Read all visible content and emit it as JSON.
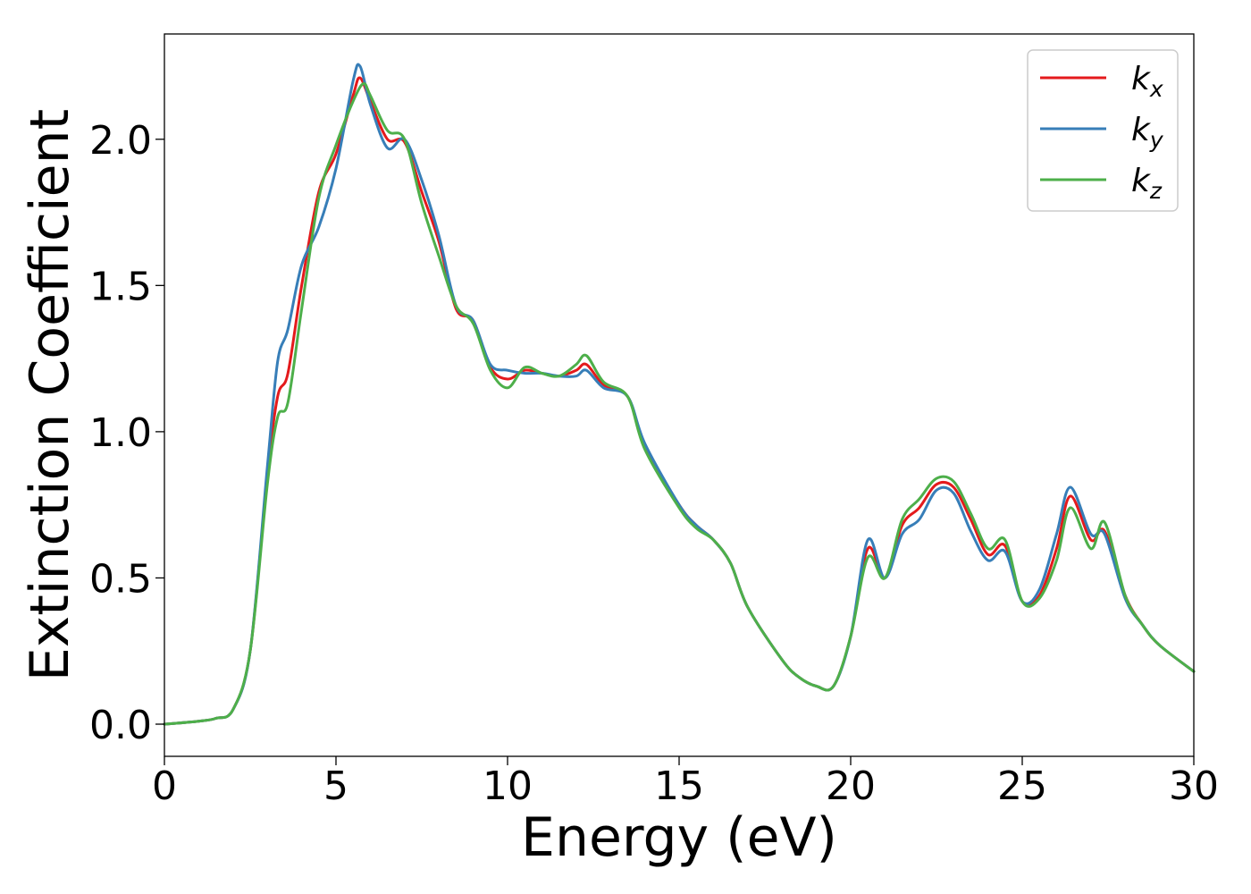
{
  "chart_data": {
    "type": "line",
    "title": "",
    "xlabel": "Energy (eV)",
    "ylabel": "Extinction Coefficient",
    "xlim": [
      0,
      30
    ],
    "ylim": [
      -0.11,
      2.36
    ],
    "xticks": [
      0,
      5,
      10,
      15,
      20,
      25,
      30
    ],
    "xtick_labels": [
      "0",
      "5",
      "10",
      "15",
      "20",
      "25",
      "30"
    ],
    "yticks": [
      0.0,
      0.5,
      1.0,
      1.5,
      2.0
    ],
    "ytick_labels": [
      "0.0",
      "0.5",
      "1.0",
      "1.5",
      "2.0"
    ],
    "grid": false,
    "legend_position": "top-right",
    "series": [
      {
        "name": "k_x",
        "legend_main": "k",
        "legend_sub": "x",
        "color": "#e41a1c",
        "points": [
          [
            0,
            0.0
          ],
          [
            1,
            0.01
          ],
          [
            1.5,
            0.02
          ],
          [
            2,
            0.05
          ],
          [
            2.5,
            0.25
          ],
          [
            3,
            0.85
          ],
          [
            3.3,
            1.12
          ],
          [
            3.6,
            1.2
          ],
          [
            4,
            1.5
          ],
          [
            4.5,
            1.82
          ],
          [
            5,
            1.95
          ],
          [
            5.5,
            2.15
          ],
          [
            5.7,
            2.21
          ],
          [
            6,
            2.13
          ],
          [
            6.5,
            2.0
          ],
          [
            7,
            1.99
          ],
          [
            7.5,
            1.82
          ],
          [
            8,
            1.65
          ],
          [
            8.5,
            1.42
          ],
          [
            9,
            1.38
          ],
          [
            9.5,
            1.22
          ],
          [
            10,
            1.18
          ],
          [
            10.5,
            1.21
          ],
          [
            11,
            1.2
          ],
          [
            11.5,
            1.19
          ],
          [
            12,
            1.21
          ],
          [
            12.3,
            1.23
          ],
          [
            12.8,
            1.16
          ],
          [
            13.5,
            1.12
          ],
          [
            14,
            0.95
          ],
          [
            15,
            0.75
          ],
          [
            15.5,
            0.68
          ],
          [
            16,
            0.63
          ],
          [
            16.5,
            0.55
          ],
          [
            17,
            0.4
          ],
          [
            18,
            0.22
          ],
          [
            18.5,
            0.16
          ],
          [
            19,
            0.13
          ],
          [
            19.5,
            0.13
          ],
          [
            20,
            0.3
          ],
          [
            20.5,
            0.6
          ],
          [
            21,
            0.5
          ],
          [
            21.5,
            0.68
          ],
          [
            22,
            0.74
          ],
          [
            22.5,
            0.82
          ],
          [
            23,
            0.81
          ],
          [
            23.5,
            0.7
          ],
          [
            24,
            0.58
          ],
          [
            24.5,
            0.61
          ],
          [
            25,
            0.42
          ],
          [
            25.5,
            0.44
          ],
          [
            26,
            0.6
          ],
          [
            26.4,
            0.78
          ],
          [
            27,
            0.63
          ],
          [
            27.4,
            0.66
          ],
          [
            28,
            0.44
          ],
          [
            28.5,
            0.34
          ],
          [
            29,
            0.27
          ],
          [
            30,
            0.18
          ]
        ]
      },
      {
        "name": "k_y",
        "legend_main": "k",
        "legend_sub": "y",
        "color": "#377eb8",
        "points": [
          [
            0,
            0.0
          ],
          [
            1,
            0.01
          ],
          [
            1.5,
            0.02
          ],
          [
            2,
            0.05
          ],
          [
            2.5,
            0.25
          ],
          [
            3,
            0.88
          ],
          [
            3.3,
            1.24
          ],
          [
            3.6,
            1.35
          ],
          [
            4,
            1.57
          ],
          [
            4.5,
            1.7
          ],
          [
            5,
            1.9
          ],
          [
            5.5,
            2.2
          ],
          [
            5.7,
            2.25
          ],
          [
            6,
            2.12
          ],
          [
            6.5,
            1.97
          ],
          [
            7,
            2.0
          ],
          [
            7.5,
            1.86
          ],
          [
            8,
            1.67
          ],
          [
            8.5,
            1.43
          ],
          [
            9,
            1.38
          ],
          [
            9.5,
            1.23
          ],
          [
            10,
            1.21
          ],
          [
            10.5,
            1.2
          ],
          [
            11,
            1.2
          ],
          [
            11.5,
            1.19
          ],
          [
            12,
            1.19
          ],
          [
            12.3,
            1.21
          ],
          [
            12.8,
            1.15
          ],
          [
            13.5,
            1.12
          ],
          [
            14,
            0.96
          ],
          [
            15,
            0.75
          ],
          [
            15.5,
            0.68
          ],
          [
            16,
            0.63
          ],
          [
            16.5,
            0.55
          ],
          [
            17,
            0.4
          ],
          [
            18,
            0.22
          ],
          [
            18.5,
            0.16
          ],
          [
            19,
            0.13
          ],
          [
            19.5,
            0.13
          ],
          [
            20,
            0.3
          ],
          [
            20.5,
            0.63
          ],
          [
            21,
            0.5
          ],
          [
            21.5,
            0.65
          ],
          [
            22,
            0.7
          ],
          [
            22.5,
            0.8
          ],
          [
            23,
            0.79
          ],
          [
            23.5,
            0.66
          ],
          [
            24,
            0.56
          ],
          [
            24.5,
            0.59
          ],
          [
            25,
            0.42
          ],
          [
            25.5,
            0.46
          ],
          [
            26,
            0.65
          ],
          [
            26.4,
            0.81
          ],
          [
            27,
            0.65
          ],
          [
            27.4,
            0.65
          ],
          [
            28,
            0.43
          ],
          [
            28.5,
            0.34
          ],
          [
            29,
            0.27
          ],
          [
            30,
            0.18
          ]
        ]
      },
      {
        "name": "k_z",
        "legend_main": "k",
        "legend_sub": "z",
        "color": "#4daf4a",
        "points": [
          [
            0,
            0.0
          ],
          [
            1,
            0.01
          ],
          [
            1.5,
            0.02
          ],
          [
            2,
            0.05
          ],
          [
            2.5,
            0.25
          ],
          [
            3,
            0.82
          ],
          [
            3.3,
            1.05
          ],
          [
            3.6,
            1.1
          ],
          [
            4,
            1.42
          ],
          [
            4.5,
            1.8
          ],
          [
            5,
            1.98
          ],
          [
            5.5,
            2.13
          ],
          [
            5.8,
            2.19
          ],
          [
            6,
            2.15
          ],
          [
            6.5,
            2.03
          ],
          [
            7,
            2.0
          ],
          [
            7.5,
            1.78
          ],
          [
            8,
            1.6
          ],
          [
            8.5,
            1.43
          ],
          [
            9,
            1.37
          ],
          [
            9.5,
            1.21
          ],
          [
            10,
            1.15
          ],
          [
            10.5,
            1.22
          ],
          [
            11,
            1.2
          ],
          [
            11.5,
            1.19
          ],
          [
            12,
            1.23
          ],
          [
            12.3,
            1.26
          ],
          [
            12.8,
            1.17
          ],
          [
            13.5,
            1.12
          ],
          [
            14,
            0.94
          ],
          [
            15,
            0.74
          ],
          [
            15.5,
            0.67
          ],
          [
            16,
            0.63
          ],
          [
            16.5,
            0.55
          ],
          [
            17,
            0.4
          ],
          [
            18,
            0.22
          ],
          [
            18.5,
            0.16
          ],
          [
            19,
            0.13
          ],
          [
            19.5,
            0.13
          ],
          [
            20,
            0.3
          ],
          [
            20.5,
            0.57
          ],
          [
            21,
            0.5
          ],
          [
            21.5,
            0.7
          ],
          [
            22,
            0.77
          ],
          [
            22.5,
            0.84
          ],
          [
            23,
            0.83
          ],
          [
            23.5,
            0.72
          ],
          [
            24,
            0.6
          ],
          [
            24.5,
            0.63
          ],
          [
            25,
            0.42
          ],
          [
            25.5,
            0.43
          ],
          [
            26,
            0.56
          ],
          [
            26.4,
            0.74
          ],
          [
            27,
            0.6
          ],
          [
            27.4,
            0.69
          ],
          [
            28,
            0.44
          ],
          [
            28.5,
            0.34
          ],
          [
            29,
            0.27
          ],
          [
            30,
            0.18
          ]
        ]
      }
    ]
  }
}
